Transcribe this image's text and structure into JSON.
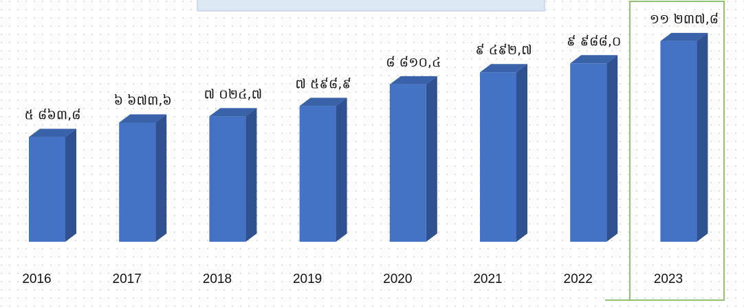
{
  "chart_data": {
    "type": "bar3d",
    "categories": [
      "2016",
      "2017",
      "2018",
      "2019",
      "2020",
      "2021",
      "2022",
      "2023"
    ],
    "values": [
      5863.8,
      6673.6,
      7024.7,
      7598.9,
      8810.4,
      9492.7,
      9988.0,
      11237.8
    ],
    "value_labels": [
      "៥ ៨៦៣,៨",
      "៦ ៦៧៣,៦",
      "៧ ០២៤,៧",
      "៧ ៥៩៨,៩",
      "៨ ៨១០,៤",
      "៩ ៤៩២,៧",
      "៩ ៩៨៨,០",
      "១១ ២៣៧,៨"
    ],
    "color": "#4472c4"
  }
}
